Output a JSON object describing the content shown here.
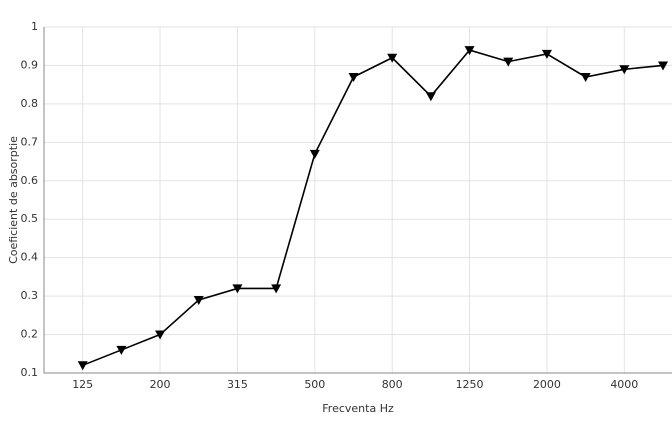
{
  "chart_data": {
    "type": "line",
    "xlabel": "Frecventa Hz",
    "ylabel": "Coeficient de absorptie",
    "categories": [
      "125",
      null,
      "200",
      null,
      "315",
      null,
      "500",
      null,
      "800",
      null,
      "1250",
      null,
      "2000",
      null,
      "4000",
      null
    ],
    "series": [
      {
        "name": null,
        "color": "#000000",
        "values": [
          0.12,
          0.16,
          0.2,
          0.29,
          0.32,
          0.32,
          0.67,
          0.87,
          0.92,
          0.82,
          0.94,
          0.91,
          0.93,
          0.87,
          0.89,
          0.9
        ]
      }
    ],
    "ylim": [
      0.1,
      1
    ],
    "yticks": [
      0.1,
      0.2,
      0.3,
      0.4,
      0.5,
      0.6,
      0.7,
      0.8,
      0.9,
      1
    ],
    "grid": true
  }
}
